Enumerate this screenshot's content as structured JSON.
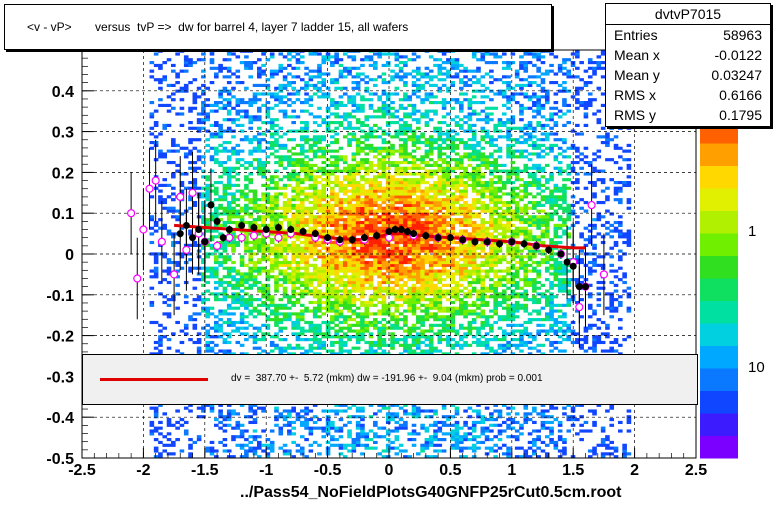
{
  "title": "<v - vP>       versus  tvP =>  dw for barrel 4, layer 7 ladder 15, all wafers",
  "xlabel": "../Pass54_NoFieldPlotsG40GNFP25rCut0.5cm.root",
  "stats": {
    "name": "dvtvP7015",
    "rows": [
      {
        "label": "Entries",
        "value": "58963"
      },
      {
        "label": "Mean x",
        "value": "-0.0122"
      },
      {
        "label": "Mean y",
        "value": "0.03247"
      },
      {
        "label": "RMS x",
        "value": "0.6166"
      },
      {
        "label": "RMS y",
        "value": "0.1795"
      }
    ]
  },
  "fit_text": "dv =  387.70 +-  5.72 (mkm) dw = -191.96 +-  9.04 (mkm) prob = 0.001",
  "colors": {
    "fit": "#e00000",
    "profile": "#000000",
    "open_marker": "#ff00ff"
  },
  "chart_data": {
    "type": "heatmap",
    "xlim": [
      -2.5,
      2.5
    ],
    "ylim": [
      -0.5,
      0.5
    ],
    "x_ticks": [
      "-2.5",
      "-2",
      "-1.5",
      "-1",
      "-0.5",
      "0",
      "0.5",
      "1",
      "1.5",
      "2",
      "2.5"
    ],
    "y_ticks": [
      "-0.5",
      "-0.4",
      "-0.3",
      "-0.2",
      "-0.1",
      "0",
      "0.1",
      "0.2",
      "0.3",
      "0.4"
    ],
    "z_scale": "log",
    "z_ticks": [
      "1",
      "10"
    ],
    "grid": true,
    "profile_filled": {
      "x": [
        -1.7,
        -1.65,
        -1.6,
        -1.55,
        -1.5,
        -1.45,
        -1.4,
        -1.35,
        -1.3,
        -1.2,
        -1.1,
        -1.0,
        -0.9,
        -0.8,
        -0.7,
        -0.6,
        -0.5,
        -0.4,
        -0.3,
        -0.2,
        -0.1,
        0.0,
        0.05,
        0.1,
        0.15,
        0.2,
        0.3,
        0.4,
        0.5,
        0.6,
        0.7,
        0.8,
        0.9,
        1.0,
        1.1,
        1.2,
        1.3,
        1.4,
        1.45,
        1.5,
        1.55,
        1.6
      ],
      "y": [
        0.05,
        0.07,
        0.04,
        0.06,
        0.03,
        0.12,
        0.08,
        0.04,
        0.06,
        0.07,
        0.065,
        0.06,
        0.065,
        0.06,
        0.055,
        0.05,
        0.04,
        0.035,
        0.035,
        0.04,
        0.045,
        0.055,
        0.06,
        0.06,
        0.055,
        0.05,
        0.045,
        0.04,
        0.04,
        0.035,
        0.03,
        0.03,
        0.025,
        0.03,
        0.025,
        0.02,
        0.01,
        0.0,
        -0.02,
        -0.03,
        -0.08,
        -0.08
      ]
    },
    "profile_open": {
      "x": [
        -2.1,
        -2.05,
        -2.0,
        -1.95,
        -1.9,
        -1.85,
        -1.75,
        -1.7,
        -1.65,
        -1.6,
        -1.55,
        -1.5,
        -1.4,
        -1.3,
        -1.2,
        -1.1,
        -1.0,
        -0.9,
        -0.8,
        -0.6,
        -0.5,
        -0.4,
        -0.2,
        0.0,
        0.2,
        0.4,
        0.6,
        0.8,
        1.0,
        1.2,
        1.4,
        1.5,
        1.55,
        1.6,
        1.65,
        1.75
      ],
      "y": [
        0.1,
        -0.06,
        0.06,
        0.16,
        0.18,
        0.03,
        -0.05,
        0.14,
        0.01,
        0.15,
        0.05,
        0.03,
        0.02,
        0.04,
        0.04,
        0.045,
        0.05,
        0.04,
        0.05,
        0.04,
        0.035,
        0.03,
        0.035,
        0.04,
        0.045,
        0.04,
        0.035,
        0.03,
        0.03,
        0.02,
        0.0,
        -0.02,
        -0.13,
        -0.08,
        0.12,
        -0.05
      ]
    },
    "fit_curve": {
      "x": [
        -1.75,
        -1.5,
        -1.25,
        -1.0,
        -0.75,
        -0.5,
        -0.25,
        -0.1,
        0.0,
        0.1,
        0.25,
        0.5,
        0.75,
        1.0,
        1.25,
        1.5,
        1.6
      ],
      "y": [
        0.07,
        0.065,
        0.06,
        0.055,
        0.05,
        0.04,
        0.035,
        0.04,
        0.05,
        0.05,
        0.045,
        0.04,
        0.035,
        0.03,
        0.02,
        0.015,
        0.015
      ]
    }
  }
}
